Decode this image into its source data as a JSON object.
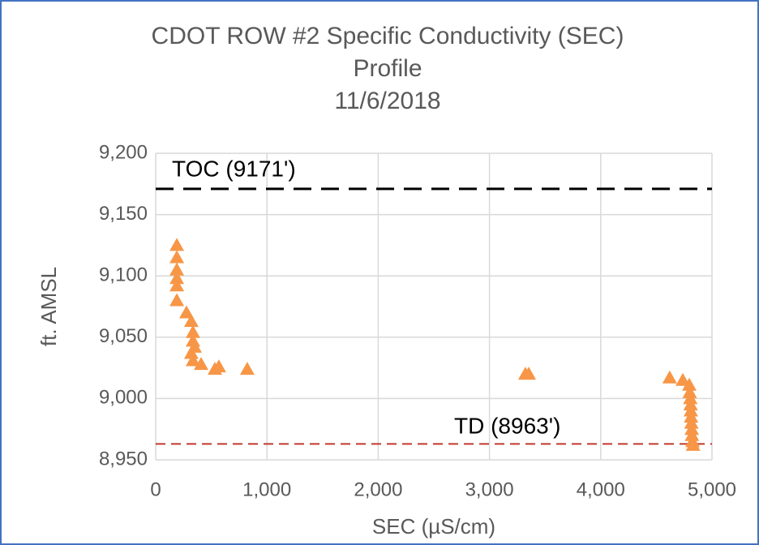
{
  "chart_data": {
    "type": "scatter",
    "title": [
      "CDOT ROW #2 Specific Conductivity (SEC)",
      "Profile",
      "11/6/2018"
    ],
    "x_label": "SEC (µS/cm)",
    "y_label": "ft. AMSL",
    "color": "#f79646",
    "marker": "triangle",
    "grid": true,
    "xlim": [
      0,
      5000
    ],
    "ylim": [
      8950,
      9200
    ],
    "xticks": [
      0,
      {
        "value": 1000,
        "label": "1,000"
      },
      {
        "value": 2000,
        "label": "2,000"
      },
      {
        "value": 3000,
        "label": "3,000"
      },
      {
        "value": 4000,
        "label": "4,000"
      },
      {
        "value": 5000,
        "label": "5,000"
      }
    ],
    "yticks": [
      {
        "value": 8950,
        "label": "8,950"
      },
      {
        "value": 9000,
        "label": "9,000"
      },
      {
        "value": 9050,
        "label": "9,050"
      },
      {
        "value": 9100,
        "label": "9,100"
      },
      {
        "value": 9150,
        "label": "9,150"
      },
      {
        "value": 9200,
        "label": "9,200"
      }
    ],
    "reference_lines": [
      {
        "label": "TOC (9171')",
        "value": 9171,
        "color": "#000000"
      },
      {
        "label": "TD (8963')",
        "value": 8963,
        "color": "#c0392b"
      }
    ],
    "x": [
      190,
      190,
      190,
      190,
      190,
      190,
      277,
      320,
      335,
      335,
      350,
      320,
      335,
      408,
      532,
      568,
      823,
      3323,
      3353,
      4620,
      4738,
      4796,
      4800,
      4805,
      4808,
      4810,
      4812,
      4815,
      4818,
      4820,
      4825,
      4830
    ],
    "values": [
      9125,
      9115,
      9105,
      9098,
      9092,
      9080,
      9070,
      9063,
      9054,
      9047,
      9042,
      9037,
      9031,
      9028,
      9024,
      9026,
      9024,
      9020,
      9020,
      9017,
      9015,
      9011,
      9005,
      9000,
      8995,
      8990,
      8985,
      8980,
      8975,
      8970,
      8965,
      8962
    ]
  }
}
